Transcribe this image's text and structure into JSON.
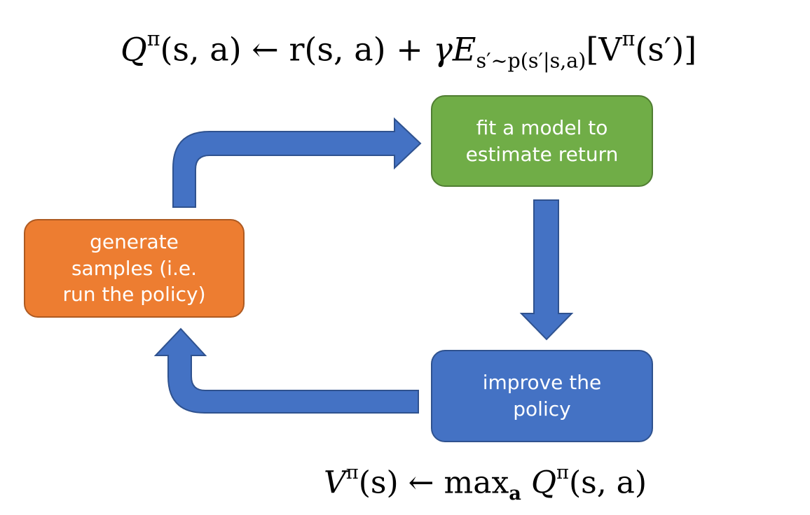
{
  "diagram": {
    "equation_top": {
      "lhs": "Q",
      "lhs_sup": "π",
      "lhs_args": "(s, a)",
      "arrow": "←",
      "reward": "r(s, a)",
      "plus": "+",
      "gamma": "γ",
      "expect": "E",
      "expect_sub": "s′∼p(s′|s,a)",
      "value_open": "[V",
      "value_sup": "π",
      "value_args": "(s′)]"
    },
    "equation_bottom": {
      "lhs": "V",
      "lhs_sup": "π",
      "lhs_args": "(s)",
      "arrow": "←",
      "max": "max",
      "max_sub": "a",
      "rhs": "Q",
      "rhs_sup": "π",
      "rhs_args": "(s, a)"
    },
    "boxes": {
      "fit": {
        "line1": "fit a model to",
        "line2": "estimate return"
      },
      "generate": {
        "line1": "generate",
        "line2": "samples (i.e.",
        "line3": "run the policy)"
      },
      "improve": {
        "line1": "improve the",
        "line2": "policy"
      }
    },
    "colors": {
      "fit": "#70AD47",
      "generate": "#ED7D31",
      "improve": "#4472C4",
      "arrow": "#4472C4"
    }
  }
}
